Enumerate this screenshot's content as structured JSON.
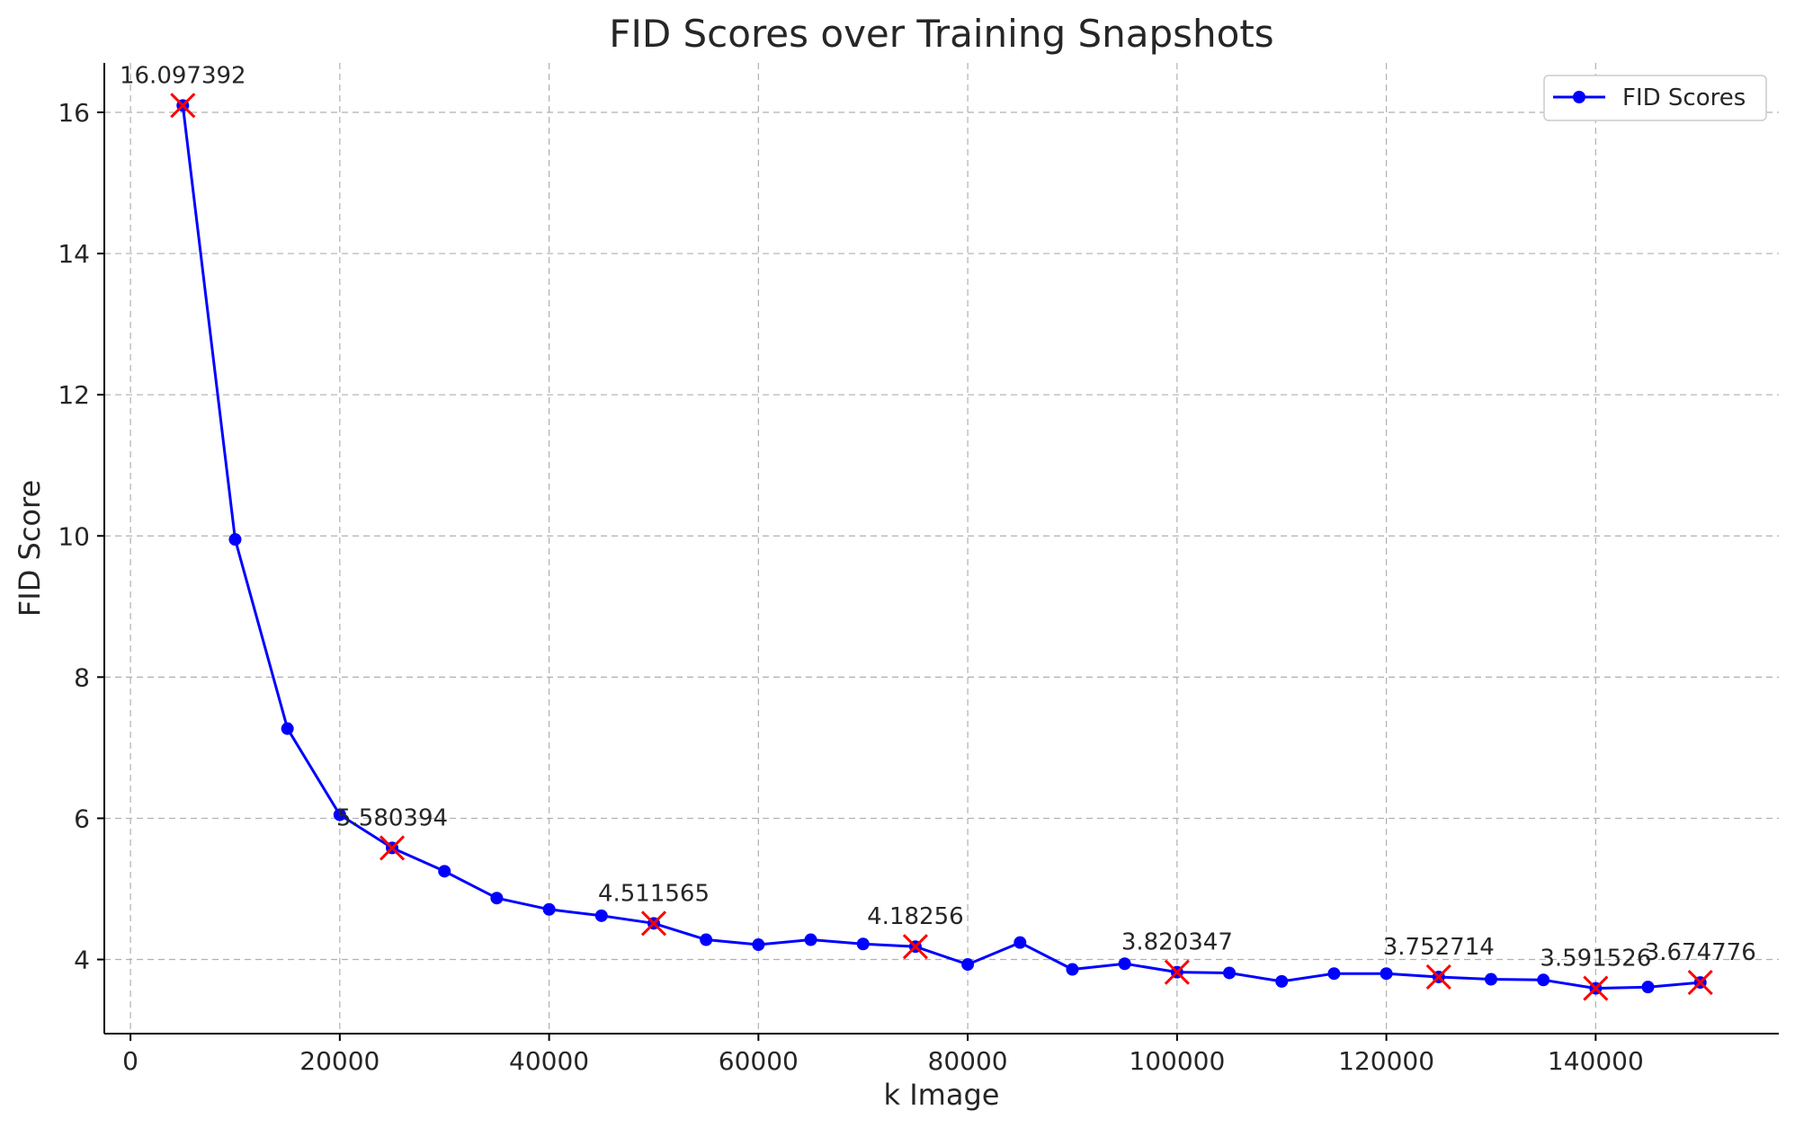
{
  "chart_data": {
    "type": "line",
    "title": "FID Scores over Training Snapshots",
    "xlabel": "k Image",
    "ylabel": "FID Score",
    "xlim": [
      -2500,
      157500
    ],
    "ylim": [
      2.95,
      16.7
    ],
    "xticks": [
      0,
      20000,
      40000,
      60000,
      80000,
      100000,
      120000,
      140000
    ],
    "yticks": [
      4,
      6,
      8,
      10,
      12,
      14,
      16
    ],
    "grid": true,
    "legend_position": "top-right",
    "series": [
      {
        "name": "FID Scores",
        "color": "#0000ff",
        "marker": "circle",
        "x": [
          5000,
          10000,
          15000,
          20000,
          25000,
          30000,
          35000,
          40000,
          45000,
          50000,
          55000,
          60000,
          65000,
          70000,
          75000,
          80000,
          85000,
          90000,
          95000,
          100000,
          105000,
          110000,
          115000,
          120000,
          125000,
          130000,
          135000,
          140000,
          145000,
          150000
        ],
        "y": [
          16.097392,
          9.95,
          7.27,
          6.05,
          5.580394,
          5.25,
          4.87,
          4.71,
          4.62,
          4.511565,
          4.28,
          4.21,
          4.28,
          4.22,
          4.18256,
          3.93,
          4.24,
          3.86,
          3.94,
          3.820347,
          3.81,
          3.69,
          3.8,
          3.8,
          3.752714,
          3.72,
          3.71,
          3.591526,
          3.61,
          3.674776
        ]
      }
    ],
    "highlights": {
      "marker": "x",
      "color": "#ff0000",
      "points": [
        {
          "x": 5000,
          "y": 16.097392,
          "label": "16.097392"
        },
        {
          "x": 25000,
          "y": 5.580394,
          "label": "5.580394"
        },
        {
          "x": 50000,
          "y": 4.511565,
          "label": "4.511565"
        },
        {
          "x": 75000,
          "y": 4.18256,
          "label": "4.18256"
        },
        {
          "x": 100000,
          "y": 3.820347,
          "label": "3.820347"
        },
        {
          "x": 125000,
          "y": 3.752714,
          "label": "3.752714"
        },
        {
          "x": 140000,
          "y": 3.591526,
          "label": "3.591526"
        },
        {
          "x": 150000,
          "y": 3.674776,
          "label": "3.674776"
        }
      ]
    }
  }
}
